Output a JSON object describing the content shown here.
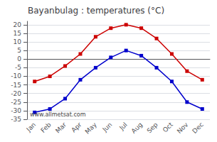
{
  "chart_data": {
    "type": "line",
    "title": "Bayanbulag : temperatures (°C)",
    "categories": [
      "Jan",
      "Feb",
      "Mar",
      "Apr",
      "May",
      "Jun",
      "Jul",
      "Aug",
      "Sep",
      "Oct",
      "Nov",
      "Dec"
    ],
    "series": [
      {
        "color": "#cc0000",
        "marker": "square",
        "line_style": "solid",
        "values": [
          -13,
          -10,
          -4,
          3,
          13,
          18,
          20,
          18,
          12,
          3,
          -7,
          -12
        ]
      },
      {
        "color": "#0000cc",
        "marker": "square",
        "line_style": "solid",
        "values": [
          -31,
          -29,
          -23,
          -12,
          -5,
          1,
          5,
          2,
          -5,
          -13,
          -25,
          -29
        ]
      }
    ],
    "ylim": [
      -35,
      22
    ],
    "yticks": [
      -35,
      -30,
      -25,
      -20,
      -15,
      -10,
      -5,
      0,
      5,
      10,
      15,
      20
    ],
    "grid": true,
    "annotations": [
      "www.allmetsat.com"
    ]
  }
}
